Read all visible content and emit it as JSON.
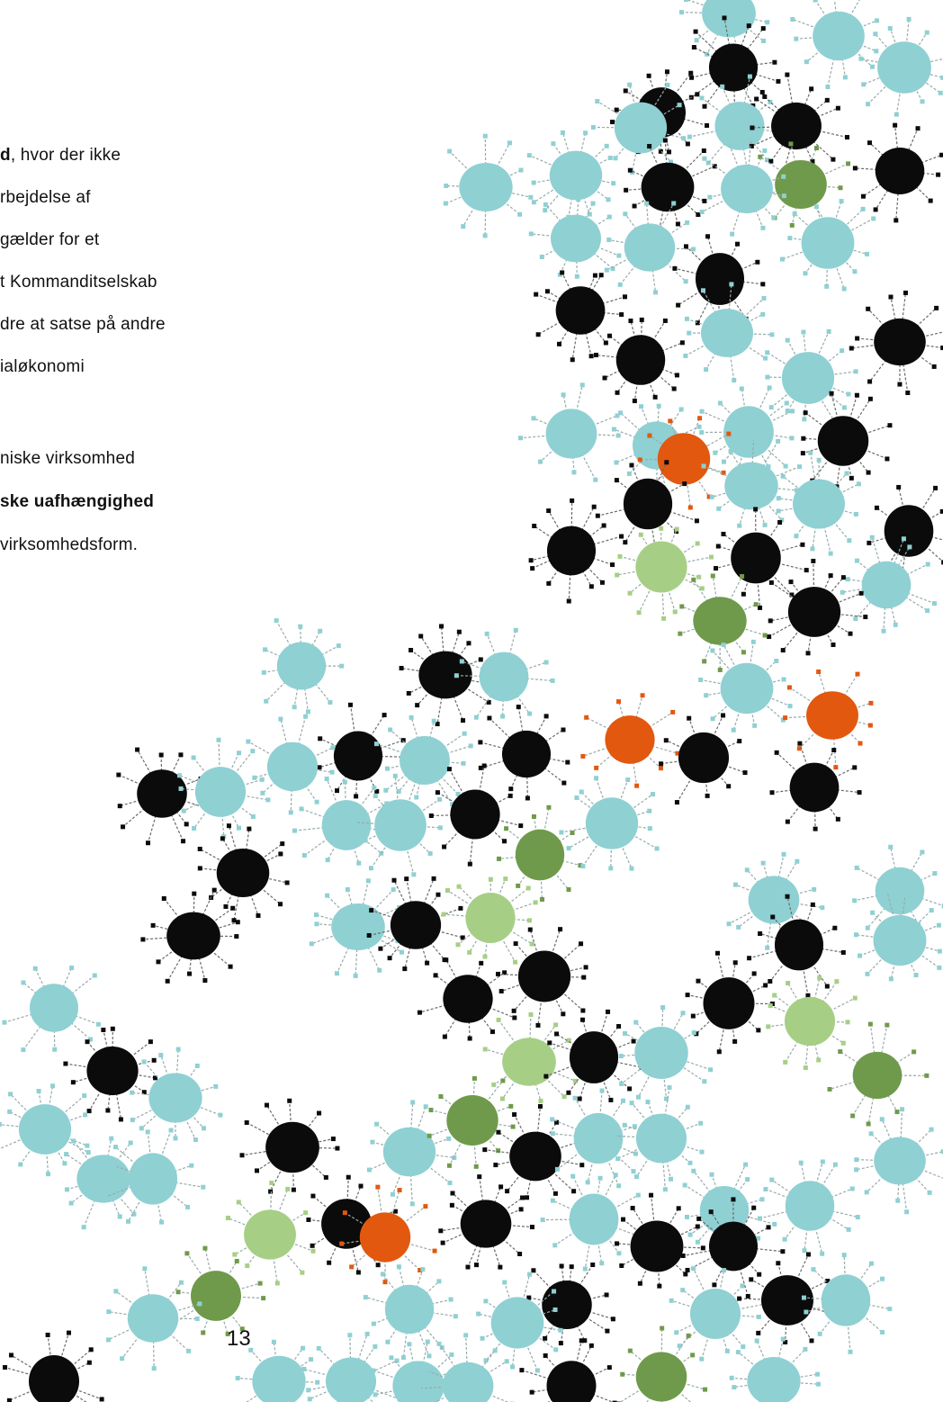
{
  "body_text": {
    "lines": [
      {
        "bold": "d",
        "rest": ", hvor der ikke"
      },
      {
        "bold": "",
        "rest": "rbejdelse af"
      },
      {
        "bold": "",
        "rest": "gælder for et"
      },
      {
        "bold": "",
        "rest": "t Kommanditselskab"
      },
      {
        "bold": "",
        "rest": "dre at satse på andre"
      },
      {
        "bold": "",
        "rest": "ialøkonomi"
      },
      {
        "bold": "",
        "rest": "niske virksomhed"
      },
      {
        "bold": "ske uafhængighed",
        "rest": ""
      },
      {
        "bold": "",
        "rest": "virksomhedsform."
      }
    ]
  },
  "page_number": "13",
  "illustration": {
    "colors": {
      "cyan": "#8fd0d3",
      "black": "#0b0b0b",
      "light_green": "#a6cf85",
      "olive": "#6f9a4b",
      "orange": "#e2580f"
    }
  }
}
